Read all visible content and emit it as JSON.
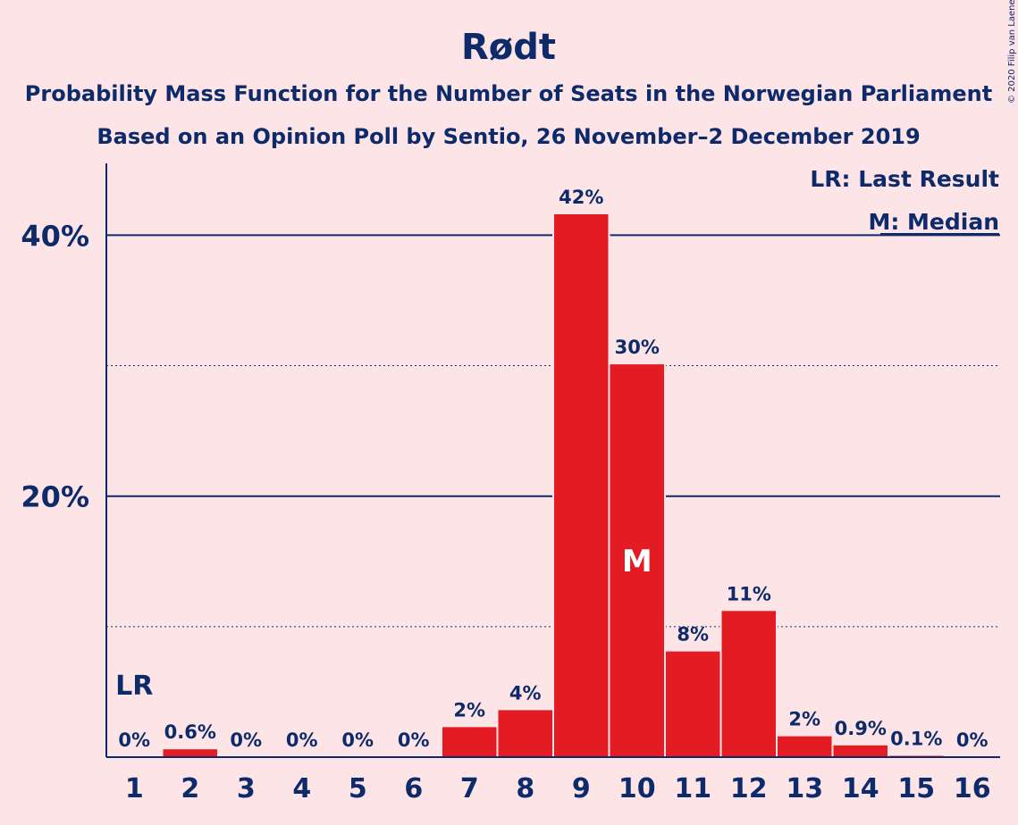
{
  "chart_data": {
    "type": "bar",
    "title": "Rødt",
    "subtitle": "Probability Mass Function for the Number of Seats in the Norwegian Parliament",
    "subtitle2": "Based on an Opinion Poll by Sentio, 26 November–2 December 2019",
    "copyright": "© 2020 Filip van Laenen",
    "categories": [
      "1",
      "2",
      "3",
      "4",
      "5",
      "6",
      "7",
      "8",
      "9",
      "10",
      "11",
      "12",
      "13",
      "14",
      "15",
      "16"
    ],
    "values": [
      0,
      0.6,
      0,
      0,
      0,
      0,
      2.3,
      3.6,
      41.6,
      30.1,
      8.1,
      11.2,
      1.6,
      0.9,
      0.1,
      0
    ],
    "data_labels": [
      "0%",
      "0.6%",
      "0%",
      "0%",
      "0%",
      "0%",
      "2%",
      "4%",
      "42%",
      "30%",
      "8%",
      "11%",
      "2%",
      "0.9%",
      "0.1%",
      "0%"
    ],
    "ylim": [
      0,
      45.5
    ],
    "y_major_ticks": [
      20,
      40
    ],
    "y_major_labels": [
      "20%",
      "40%"
    ],
    "y_minor_ticks": [
      10,
      30
    ],
    "last_result_seat": "1",
    "last_result_marker": "LR",
    "median_seat": "10",
    "median_marker": "M",
    "legend": [
      "LR: Last Result",
      "M: Median"
    ],
    "legend_position": "top-right",
    "colors": {
      "bar": "#E31B23",
      "text": "#0D2A6B",
      "background": "#FDE4E6"
    }
  }
}
